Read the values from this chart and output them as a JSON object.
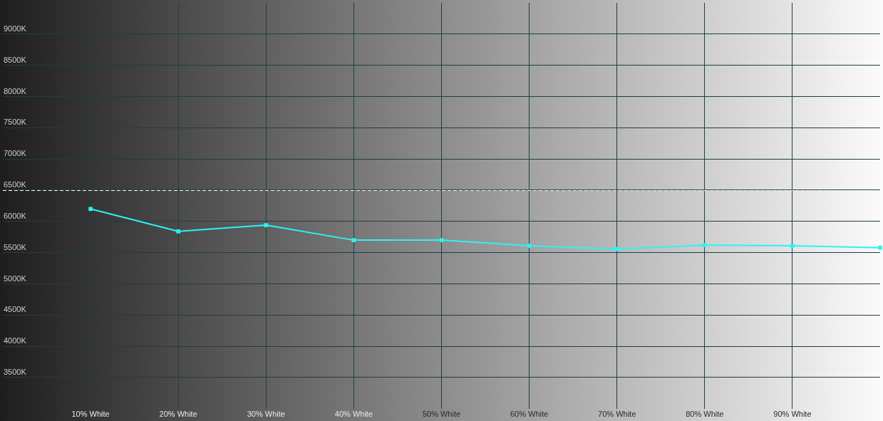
{
  "chart_data": {
    "type": "line",
    "x": [
      10,
      20,
      30,
      40,
      50,
      60,
      70,
      80,
      90,
      100
    ],
    "series": [
      {
        "color": "#2ef2f2",
        "values": [
          6200,
          5840,
          5940,
          5700,
          5700,
          5610,
          5560,
          5620,
          5610,
          5580
        ]
      }
    ],
    "xlim": [
      0,
      100
    ],
    "xticks": [
      {
        "value": 10,
        "label": "10% White"
      },
      {
        "value": 20,
        "label": "20% White"
      },
      {
        "value": 30,
        "label": "30% White"
      },
      {
        "value": 40,
        "label": "40% White"
      },
      {
        "value": 50,
        "label": "50% White"
      },
      {
        "value": 60,
        "label": "60% White"
      },
      {
        "value": 70,
        "label": "70% White"
      },
      {
        "value": 80,
        "label": "80% White"
      },
      {
        "value": 90,
        "label": "90% White"
      }
    ],
    "ylim": [
      3000,
      9500
    ],
    "yticks": [
      {
        "value": 3500,
        "label": "3500K"
      },
      {
        "value": 4000,
        "label": "4000K"
      },
      {
        "value": 4500,
        "label": "4500K"
      },
      {
        "value": 5000,
        "label": "5000K"
      },
      {
        "value": 5500,
        "label": "5500K"
      },
      {
        "value": 6000,
        "label": "6000K"
      },
      {
        "value": 6500,
        "label": "6500K"
      },
      {
        "value": 7000,
        "label": "7000K"
      },
      {
        "value": 7500,
        "label": "7500K"
      },
      {
        "value": 8000,
        "label": "8000K"
      },
      {
        "value": 8500,
        "label": "8500K"
      },
      {
        "value": 9000,
        "label": "9000K"
      }
    ],
    "grid": true,
    "marker": "square",
    "line_style": "solid",
    "ref_lines": [
      {
        "axis": "y",
        "value": 6500,
        "color": "#ffffff",
        "line_style": "dashed"
      }
    ]
  }
}
